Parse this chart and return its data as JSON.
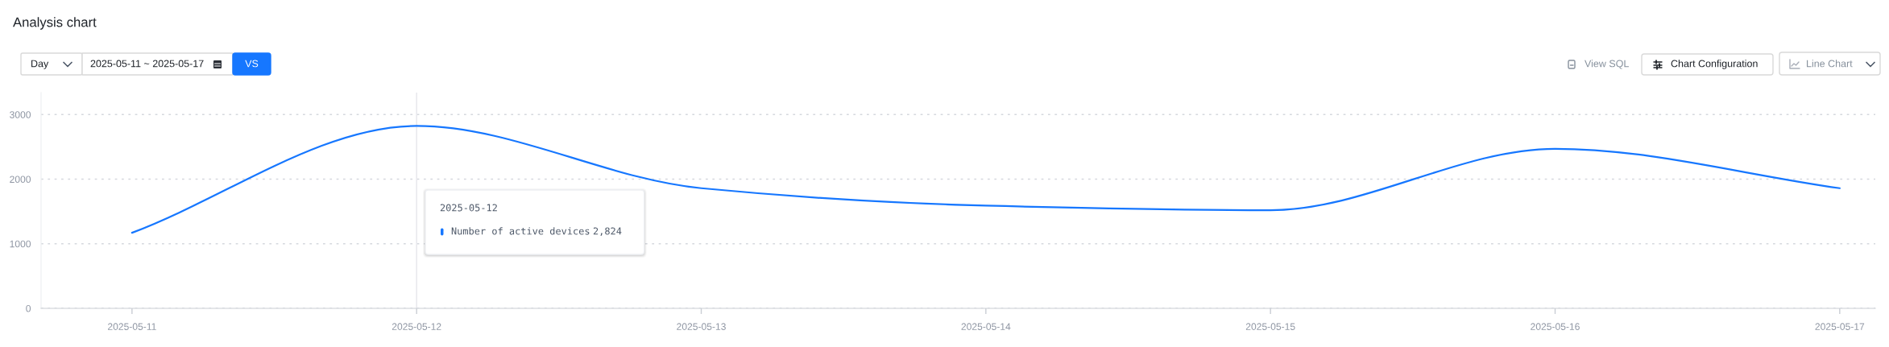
{
  "chart_data": {
    "type": "line",
    "title": "Analysis chart",
    "x": [
      "2025-05-11",
      "2025-05-12",
      "2025-05-13",
      "2025-05-14",
      "2025-05-15",
      "2025-05-16",
      "2025-05-17"
    ],
    "series": [
      {
        "name": "Number of active devices",
        "color": "#1677ff",
        "values": [
          1170,
          2824,
          1860,
          1590,
          1520,
          2470,
          1860
        ]
      }
    ],
    "xlim": [
      "2025-05-10T16:20",
      "2025-05-17T03:00"
    ],
    "xticks": [
      "2025-05-11",
      "2025-05-12",
      "2025-05-13",
      "2025-05-14",
      "2025-05-15",
      "2025-05-16",
      "2025-05-17"
    ],
    "ylim": [
      0,
      3340
    ],
    "yticks": [
      0,
      1000,
      2000,
      3000
    ],
    "grid": "y",
    "ref_lines": [
      {
        "axis": "x",
        "value": "2025-05-12",
        "color": "#e5e6eb"
      }
    ],
    "annotations": [
      "Day",
      "2025-05-11 ~ 2025-05-17",
      "VS",
      "View SQL",
      "Chart Configuration",
      "Line Chart",
      "2025-05-12",
      "2,824"
    ]
  }
}
